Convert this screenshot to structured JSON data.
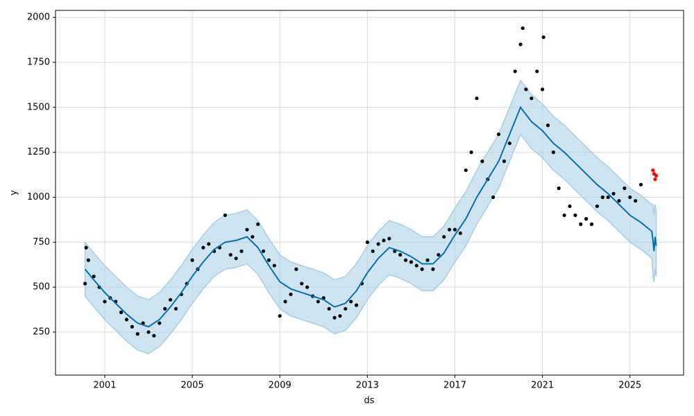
{
  "chart_data": {
    "type": "forecast",
    "x_label": "ds",
    "y_label": "y",
    "xlim": [
      1998.75,
      2027.45
    ],
    "ylim": [
      11,
      2039
    ],
    "xticks": [
      2001,
      2005,
      2009,
      2013,
      2017,
      2021,
      2025
    ],
    "yticks": [
      250,
      500,
      750,
      1000,
      1250,
      1500,
      1750,
      2000
    ],
    "grid": true,
    "observed": {
      "color": "#000000",
      "x": [
        2000.1,
        2000.15,
        2000.25,
        2000.5,
        2000.75,
        2001,
        2001.25,
        2001.5,
        2001.75,
        2002,
        2002.25,
        2002.5,
        2002.75,
        2003,
        2003.25,
        2003.5,
        2003.75,
        2004,
        2004.25,
        2004.5,
        2004.75,
        2005,
        2005.25,
        2005.5,
        2005.75,
        2006,
        2006.25,
        2006.5,
        2006.75,
        2007,
        2007.25,
        2007.5,
        2007.75,
        2008,
        2008.25,
        2008.5,
        2008.75,
        2009,
        2009.25,
        2009.5,
        2009.75,
        2010,
        2010.25,
        2010.5,
        2010.75,
        2011,
        2011.25,
        2011.5,
        2011.75,
        2012,
        2012.25,
        2012.5,
        2012.75,
        2013,
        2013.25,
        2013.5,
        2013.75,
        2014,
        2014.25,
        2014.5,
        2014.75,
        2015,
        2015.25,
        2015.5,
        2015.75,
        2016,
        2016.25,
        2016.5,
        2016.75,
        2017,
        2017.25,
        2017.5,
        2017.75,
        2018,
        2018.25,
        2018.5,
        2018.75,
        2019,
        2019.25,
        2019.5,
        2019.75,
        2020,
        2020.1,
        2020.25,
        2020.5,
        2020.75,
        2021,
        2021.05,
        2021.25,
        2021.5,
        2021.75,
        2022,
        2022.25,
        2022.5,
        2022.75,
        2023,
        2023.25,
        2023.5,
        2023.75,
        2024,
        2024.25,
        2024.5,
        2024.75,
        2025,
        2025.25,
        2025.5
      ],
      "values": [
        520,
        720,
        650,
        560,
        500,
        420,
        440,
        420,
        360,
        320,
        280,
        240,
        300,
        250,
        230,
        300,
        380,
        430,
        380,
        460,
        520,
        650,
        600,
        720,
        740,
        700,
        720,
        900,
        680,
        660,
        700,
        820,
        780,
        850,
        700,
        650,
        620,
        340,
        420,
        460,
        600,
        520,
        500,
        450,
        420,
        440,
        380,
        330,
        340,
        380,
        420,
        400,
        520,
        750,
        700,
        740,
        760,
        770,
        700,
        680,
        650,
        640,
        620,
        600,
        650,
        600,
        680,
        780,
        820,
        820,
        800,
        1150,
        1250,
        1550,
        1200,
        1100,
        1000,
        1350,
        1200,
        1300,
        1700,
        1850,
        1940,
        1600,
        1550,
        1700,
        1600,
        1890,
        1400,
        1250,
        1050,
        900,
        950,
        900,
        850,
        880,
        850,
        950,
        1000,
        1000,
        1020,
        980,
        1050,
        1000,
        980,
        1070
      ]
    },
    "future_actual": {
      "color": "#ff0000",
      "x": [
        2026.05,
        2026.1,
        2026.15,
        2026.2
      ],
      "values": [
        1150,
        1130,
        1100,
        1120
      ]
    },
    "forecast": {
      "color": "#0072b2",
      "band_color": "#a6cee3",
      "x": [
        2000.1,
        2000.5,
        2001,
        2001.5,
        2002,
        2002.5,
        2003,
        2003.5,
        2004,
        2004.5,
        2005,
        2005.5,
        2006,
        2006.5,
        2007,
        2007.5,
        2008,
        2008.5,
        2009,
        2009.5,
        2010,
        2010.5,
        2011,
        2011.5,
        2012,
        2012.5,
        2013,
        2013.5,
        2014,
        2014.5,
        2015,
        2015.5,
        2016,
        2016.5,
        2017,
        2017.5,
        2018,
        2018.5,
        2019,
        2019.5,
        2020,
        2020.5,
        2021,
        2021.5,
        2022,
        2022.5,
        2023,
        2023.5,
        2024,
        2024.5,
        2025,
        2025.5,
        2026,
        2026.05,
        2026.1,
        2026.15,
        2026.2
      ],
      "values": [
        600,
        540,
        470,
        410,
        350,
        300,
        280,
        320,
        390,
        470,
        560,
        640,
        710,
        750,
        760,
        780,
        720,
        620,
        530,
        490,
        470,
        450,
        430,
        390,
        410,
        480,
        580,
        660,
        720,
        700,
        670,
        630,
        630,
        690,
        790,
        880,
        1000,
        1100,
        1200,
        1350,
        1500,
        1420,
        1370,
        1300,
        1250,
        1190,
        1130,
        1070,
        1020,
        960,
        900,
        860,
        810,
        760,
        700,
        780,
        730
      ],
      "upper": [
        750,
        690,
        620,
        560,
        500,
        450,
        430,
        470,
        540,
        620,
        710,
        790,
        860,
        900,
        910,
        930,
        870,
        770,
        680,
        640,
        620,
        600,
        580,
        540,
        560,
        630,
        730,
        810,
        870,
        850,
        820,
        780,
        780,
        840,
        940,
        1030,
        1150,
        1250,
        1350,
        1500,
        1650,
        1570,
        1520,
        1450,
        1400,
        1340,
        1280,
        1220,
        1170,
        1110,
        1050,
        1010,
        960,
        960,
        900,
        960,
        920
      ],
      "lower": [
        450,
        390,
        320,
        260,
        200,
        150,
        130,
        170,
        240,
        320,
        410,
        490,
        560,
        600,
        610,
        630,
        570,
        470,
        380,
        340,
        320,
        300,
        280,
        240,
        260,
        330,
        430,
        510,
        570,
        550,
        520,
        480,
        480,
        540,
        640,
        730,
        850,
        950,
        1050,
        1200,
        1350,
        1270,
        1220,
        1150,
        1100,
        1040,
        980,
        920,
        870,
        810,
        750,
        710,
        660,
        560,
        530,
        600,
        560
      ]
    }
  }
}
